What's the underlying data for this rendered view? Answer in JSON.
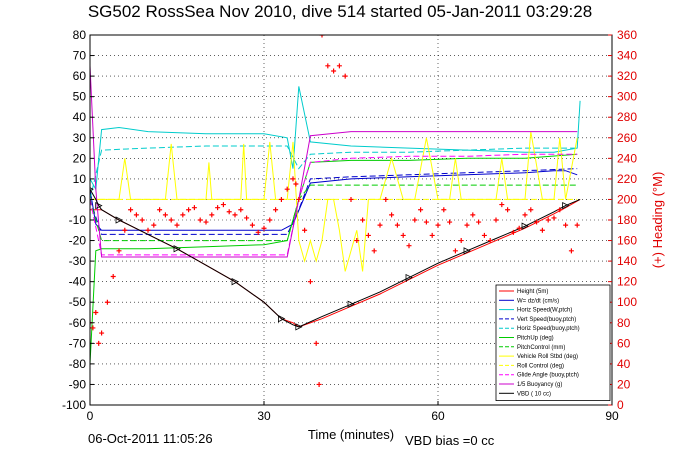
{
  "title": "SG502 RossSea Nov 2010, dive 514 started 05-Jan-2011 03:29:28",
  "footer_date": "06-Oct-2011 11:05:26",
  "footer_bias": "VBD bias =0 cc",
  "chart_data": {
    "type": "line",
    "title": "SG502 RossSea Nov 2010, dive 514 started 05-Jan-2011 03:29:28",
    "xlabel": "Time (minutes)",
    "ylabel": "",
    "y2label": "(+) Heading (°M)",
    "xlim": [
      0,
      90
    ],
    "ylim": [
      -100,
      80
    ],
    "y2lim": [
      0,
      360
    ],
    "grid": true,
    "legend_position": "bottom-right",
    "xticks": [
      "0",
      "30",
      "60",
      "90"
    ],
    "yticks": [
      "80",
      "70",
      "60",
      "50",
      "40",
      "30",
      "20",
      "10",
      "0",
      "-10",
      "-20",
      "-30",
      "-40",
      "-50",
      "-60",
      "-70",
      "-80",
      "-90",
      "-100"
    ],
    "y2ticks": [
      "360",
      "340",
      "320",
      "300",
      "280",
      "260",
      "240",
      "220",
      "200",
      "180",
      "160",
      "140",
      "120",
      "100",
      "80",
      "60",
      "40",
      "20",
      "0"
    ],
    "series": [
      {
        "name": "Height (5m)",
        "color": "#ff0000",
        "style": "solid",
        "axis": "left",
        "x": [
          0,
          2,
          5,
          10,
          15,
          20,
          25,
          30,
          33,
          35,
          36,
          40,
          45,
          50,
          55,
          60,
          65,
          70,
          75,
          80,
          82,
          84.5
        ],
        "y": [
          -5,
          -5,
          -10,
          -17,
          -24,
          -32,
          -40,
          -50,
          -58,
          -60,
          -62,
          -58,
          -52,
          -46,
          -39,
          -32,
          -26,
          -20,
          -14,
          -7,
          -4,
          0
        ]
      },
      {
        "name": "W= dz/dt (cm/s)",
        "color": "#0000cc",
        "style": "solid",
        "axis": "left",
        "x": [
          0,
          1,
          2,
          10,
          20,
          30,
          33,
          35,
          38,
          45,
          55,
          65,
          75,
          80,
          82,
          84
        ],
        "y": [
          5,
          -12,
          -15,
          -15,
          -15,
          -15,
          -15,
          -12,
          8,
          10,
          11,
          12,
          13,
          14,
          14,
          12
        ]
      },
      {
        "name": "Horiz Speed(W,ptch)",
        "color": "#00cccc",
        "style": "solid",
        "axis": "left",
        "x": [
          0,
          1,
          2,
          5,
          10,
          20,
          30,
          34,
          35,
          36,
          38,
          45,
          55,
          65,
          75,
          80,
          82,
          84,
          84.5
        ],
        "y": [
          10,
          5,
          34,
          35,
          33,
          32,
          32,
          30,
          15,
          55,
          28,
          26,
          25,
          24,
          23,
          23,
          24,
          25,
          48
        ]
      },
      {
        "name": "Vert Speed(buoy,ptch)",
        "color": "#0000cc",
        "style": "dashed",
        "axis": "left",
        "x": [
          0,
          2,
          10,
          20,
          30,
          34,
          36,
          38,
          45,
          55,
          65,
          75,
          84
        ],
        "y": [
          0,
          -17,
          -17,
          -17,
          -17,
          -17,
          -5,
          10,
          11,
          12,
          13,
          14,
          15
        ]
      },
      {
        "name": "Horiz Speed(buoy,ptch)",
        "color": "#00cccc",
        "style": "dashed",
        "axis": "left",
        "x": [
          0,
          2,
          10,
          20,
          30,
          34,
          36,
          38,
          45,
          55,
          65,
          75,
          84
        ],
        "y": [
          0,
          24,
          25,
          26,
          26,
          26,
          15,
          22,
          23,
          23,
          24,
          25,
          25
        ]
      },
      {
        "name": "PitchUp (deg)",
        "color": "#00cc00",
        "style": "solid",
        "axis": "left",
        "x": [
          0,
          1,
          2,
          10,
          20,
          30,
          34,
          36,
          38,
          45,
          55,
          65,
          75,
          84
        ],
        "y": [
          -80,
          -25,
          -24,
          -24,
          -23,
          -22,
          -20,
          0,
          18,
          19,
          19,
          20,
          20,
          22
        ]
      },
      {
        "name": "PitchControl (mm)",
        "color": "#00cc00",
        "style": "dashed",
        "axis": "left",
        "x": [
          0,
          2,
          10,
          20,
          30,
          34,
          36,
          38,
          45,
          55,
          65,
          75,
          84
        ],
        "y": [
          0,
          -20,
          -20,
          -20,
          -20,
          -20,
          0,
          7,
          7,
          7,
          7,
          7,
          7
        ]
      },
      {
        "name": "Vehicle Roll Stbd (deg)",
        "color": "#ffff00",
        "style": "solid",
        "axis": "left",
        "x": [
          0,
          2,
          5,
          6,
          7,
          8,
          10,
          13,
          14,
          15,
          16,
          18,
          20,
          20.5,
          21,
          22,
          24,
          26,
          26.5,
          27,
          28,
          30,
          31,
          32,
          33,
          34,
          35,
          36,
          37,
          38,
          39,
          40,
          41,
          42,
          43,
          44,
          46,
          47,
          48,
          50,
          52,
          54,
          55,
          56,
          58,
          60,
          62,
          63,
          64,
          66,
          68,
          70,
          71,
          72,
          74,
          75,
          76,
          78,
          80,
          81,
          82,
          84
        ],
        "y": [
          0,
          0,
          0,
          20,
          0,
          0,
          0,
          0,
          27,
          0,
          0,
          0,
          0,
          18,
          0,
          0,
          0,
          0,
          27,
          0,
          0,
          0,
          28,
          0,
          0,
          0,
          28,
          -20,
          -30,
          -20,
          -30,
          -20,
          0,
          0,
          -15,
          -35,
          -15,
          -35,
          0,
          0,
          20,
          0,
          0,
          0,
          30,
          0,
          0,
          20,
          0,
          0,
          0,
          0,
          20,
          0,
          0,
          0,
          33,
          0,
          0,
          30,
          0,
          30
        ]
      },
      {
        "name": "Roll Control (deg)",
        "color": "#ffff00",
        "style": "dashed",
        "axis": "left",
        "x": [
          0,
          84
        ],
        "y": [
          0,
          0
        ]
      },
      {
        "name": "Glide Angle (buoy,ptch)",
        "color": "#ff00ff",
        "style": "dashed",
        "axis": "left",
        "x": [
          0,
          2,
          10,
          20,
          30,
          34,
          36,
          38,
          45,
          55,
          65,
          75,
          84
        ],
        "y": [
          0,
          -27,
          -27,
          -27,
          -27,
          -27,
          0,
          18,
          20,
          21,
          21,
          22,
          22
        ]
      },
      {
        "name": "1/5 Buoyancy (g)",
        "color": "#cc00cc",
        "style": "solid",
        "axis": "left",
        "x": [
          0,
          1,
          2,
          10,
          20,
          30,
          34,
          36,
          38,
          45,
          55,
          65,
          75,
          84
        ],
        "y": [
          65,
          5,
          -28,
          -28,
          -28,
          -28,
          -28,
          0,
          31,
          33,
          33,
          33,
          33,
          33
        ]
      },
      {
        "name": "VBD ( 10 cc)",
        "color": "#000000",
        "style": "solid",
        "axis": "left",
        "x": [
          0,
          1,
          1.5,
          2,
          5,
          10,
          15,
          20,
          25,
          30,
          33,
          35,
          36,
          40,
          45,
          50,
          55,
          60,
          65,
          70,
          75,
          80,
          82,
          84.5
        ],
        "y": [
          5,
          0,
          -3,
          -5,
          -10,
          -17,
          -24,
          -32,
          -40,
          -50,
          -58,
          -61,
          -62,
          -57,
          -51,
          -45,
          -38,
          -31,
          -25,
          -19,
          -13,
          -6,
          -3,
          0
        ]
      },
      {
        "name": "Heading",
        "color": "#ff0000",
        "style": "markers",
        "axis": "right",
        "x": [
          0,
          0.5,
          1,
          1.5,
          2,
          3,
          4,
          5,
          6,
          7,
          8,
          9,
          10,
          11,
          12,
          13,
          14,
          15,
          16,
          17,
          18,
          19,
          20,
          21,
          22,
          23,
          24,
          25,
          26,
          27,
          28,
          29,
          30,
          31,
          32,
          33,
          34,
          35,
          35.5,
          36,
          37,
          38,
          39,
          39.5,
          40,
          41,
          42,
          43,
          44,
          45,
          46,
          47,
          48,
          49,
          50,
          51,
          52,
          53,
          54,
          55,
          56,
          57,
          58,
          59,
          60,
          61,
          62,
          63,
          64,
          65,
          66,
          67,
          68,
          69,
          70,
          71,
          72,
          73,
          74,
          75,
          76,
          77,
          78,
          79,
          80,
          81,
          82,
          83,
          84
        ],
        "y": [
          80,
          75,
          90,
          60,
          70,
          100,
          125,
          150,
          170,
          190,
          185,
          180,
          170,
          175,
          190,
          185,
          180,
          175,
          185,
          190,
          192,
          180,
          178,
          185,
          192,
          195,
          188,
          185,
          190,
          182,
          175,
          168,
          172,
          180,
          190,
          200,
          210,
          220,
          215,
          200,
          170,
          120,
          60,
          20,
          360,
          330,
          325,
          330,
          320,
          200,
          160,
          180,
          165,
          150,
          175,
          200,
          185,
          175,
          165,
          155,
          180,
          190,
          178,
          165,
          175,
          190,
          178,
          150,
          160,
          175,
          185,
          178,
          165,
          160,
          180,
          195,
          190,
          168,
          172,
          185,
          190,
          178,
          170,
          180,
          182,
          190,
          175,
          150,
          175
        ]
      }
    ]
  }
}
